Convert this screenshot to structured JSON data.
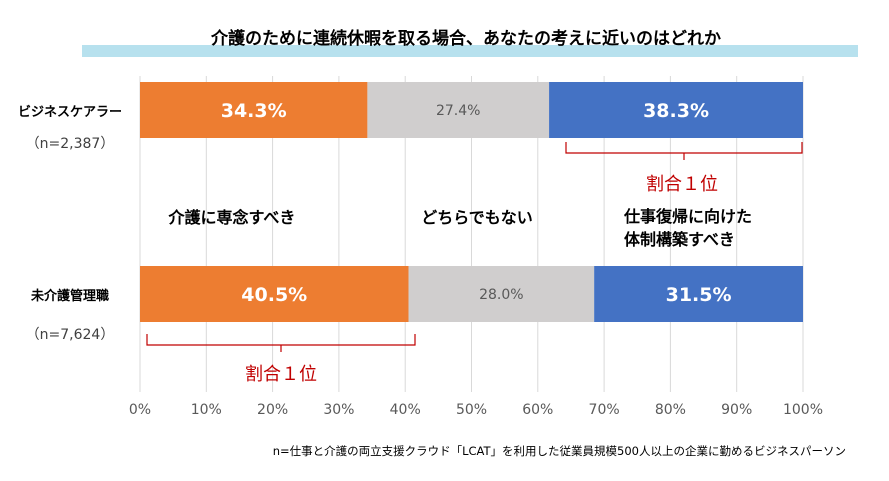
{
  "chart_data": {
    "type": "bar",
    "orientation": "horizontal",
    "stacked": true,
    "title": "介護のために連続休暇を取る場合、あなたの考えに近いのはどれか",
    "categories": [
      "ビジネスケアラー",
      "未介護管理職"
    ],
    "category_notes": [
      "（n=2,387）",
      "（n=7,624）"
    ],
    "series": [
      {
        "name": "介護に専念すべき",
        "values": [
          34.3,
          40.5
        ],
        "labels": [
          "34.3%",
          "40.5%"
        ],
        "color": "#ED7D31",
        "label_color": "#FFFFFF"
      },
      {
        "name": "どちらでもない",
        "values": [
          27.4,
          28.0
        ],
        "labels": [
          "27.4%",
          "28.0%"
        ],
        "color": "#D0CECE",
        "label_color": "#595959"
      },
      {
        "name": "仕事復帰に向けた体制構築すべき",
        "values": [
          38.3,
          31.5
        ],
        "labels": [
          "38.3%",
          "31.5%"
        ],
        "color": "#4472C4",
        "label_color": "#FFFFFF"
      }
    ],
    "series_label_lines": [
      [
        "介護に専念すべき"
      ],
      [
        "どちらでもない"
      ],
      [
        "仕事復帰に向けた",
        "体制構築すべき"
      ]
    ],
    "annotations": [
      {
        "text": "割合１位",
        "category": 0,
        "series": 2,
        "color": "#C00000"
      },
      {
        "text": "割合１位",
        "category": 1,
        "series": 0,
        "color": "#C00000"
      }
    ],
    "xlim": [
      0,
      100
    ],
    "xticks": [
      0,
      10,
      20,
      30,
      40,
      50,
      60,
      70,
      80,
      90,
      100
    ],
    "xtick_labels": [
      "0%",
      "10%",
      "20%",
      "30%",
      "40%",
      "50%",
      "60%",
      "70%",
      "80%",
      "90%",
      "100%"
    ],
    "grid": true,
    "footnote": "n=仕事と介護の両立支援クラウド「LCAT」を利用した従業員規模500人以上の企業に勤めるビジネスパーソン"
  },
  "colors": {
    "title_band": "#B7E1EE",
    "grid": "#D9D9D9",
    "text": "#000000",
    "subtext": "#404040",
    "bracket": "#C00000"
  }
}
